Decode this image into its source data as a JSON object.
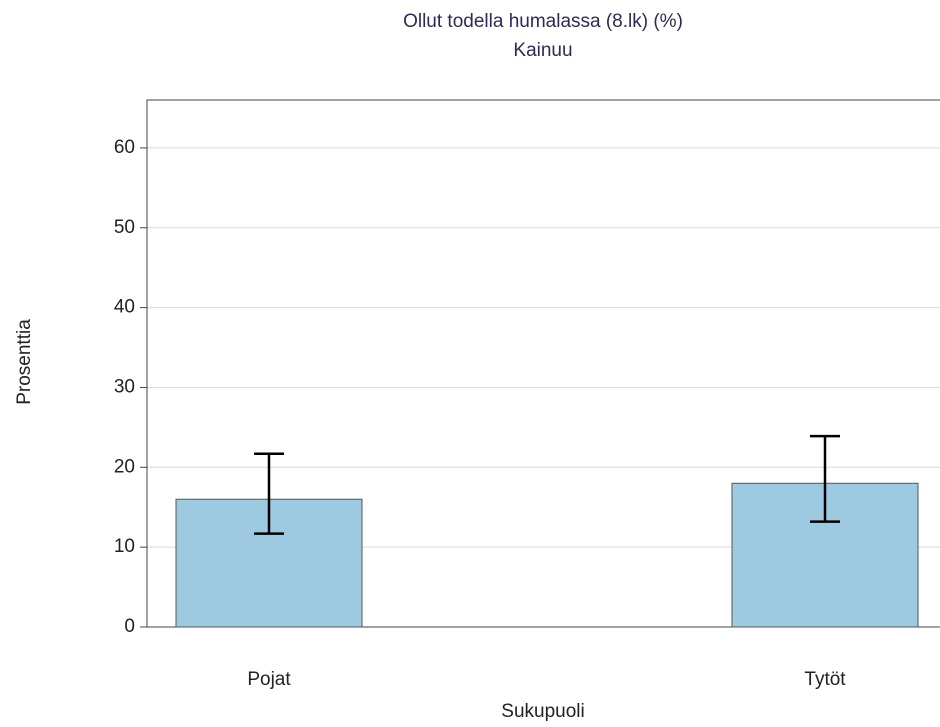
{
  "chart_data": {
    "type": "bar",
    "title": "Ollut todella humalassa (8.lk) (%)",
    "subtitle": "Kainuu",
    "x_label": "Sukupuoli",
    "y_label": "Prosenttia",
    "categories": [
      "Pojat",
      "Tytöt"
    ],
    "values": [
      16,
      18
    ],
    "ci_low": [
      11.7,
      13.2
    ],
    "ci_high": [
      21.7,
      23.9
    ],
    "color": "#9ecae1",
    "ylim": [
      0,
      66
    ],
    "yticks": [
      0,
      10,
      20,
      30,
      40,
      50,
      60
    ],
    "grid": true
  }
}
